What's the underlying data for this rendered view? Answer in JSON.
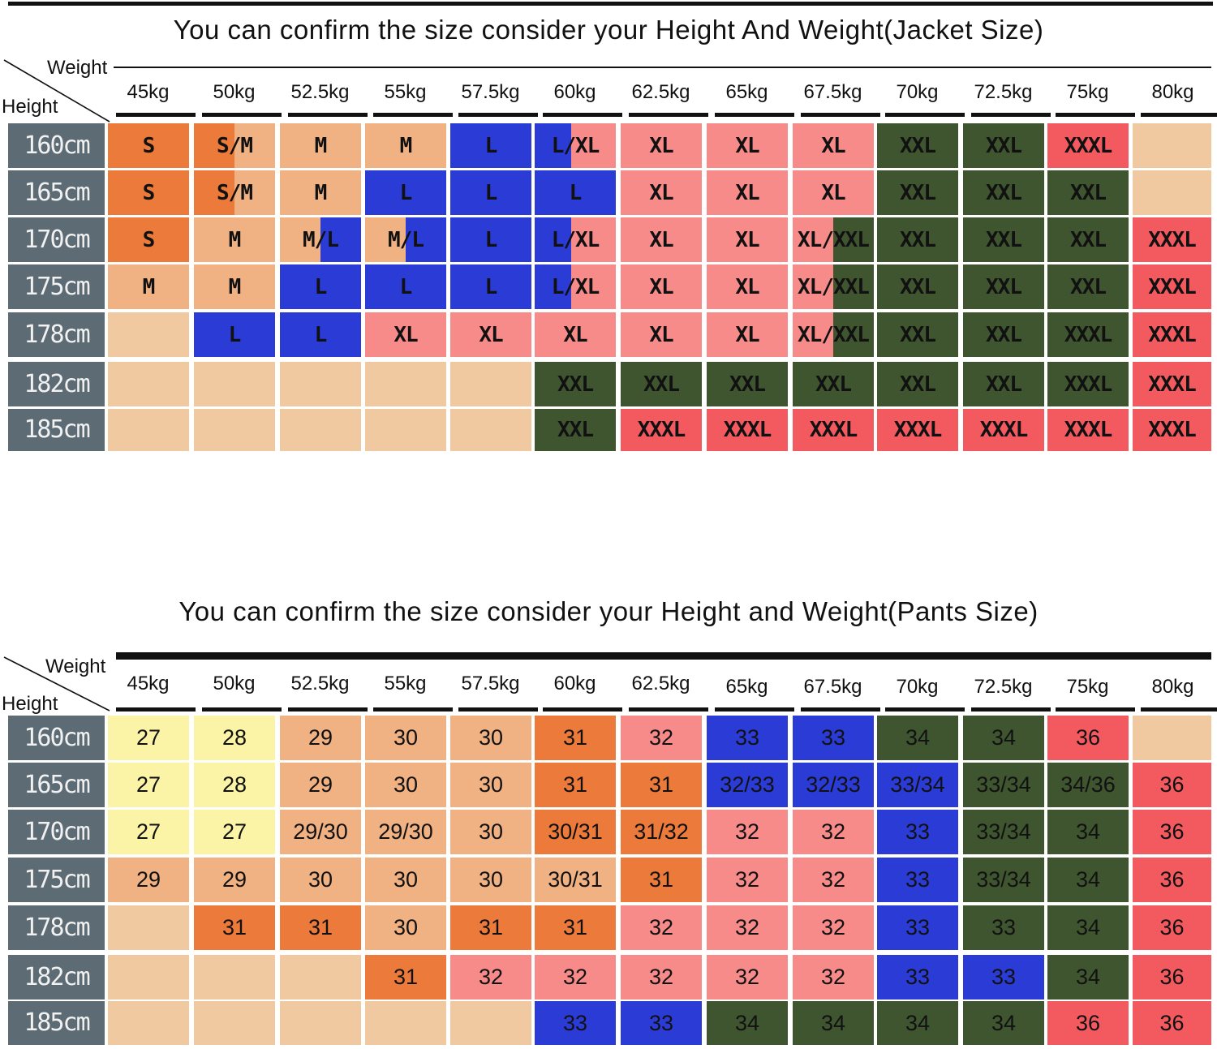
{
  "colors": {
    "S": "#ec7a3a",
    "M": "#f0b183",
    "L": "#2b3bd6",
    "XL": "#f78b8a",
    "XXL": "#3f552f",
    "XXXL": "#f25a5f",
    "empty": "#f0c9a0",
    "yellow": "#fbf4a6",
    "height_cell": "#5c6b74"
  },
  "jacket": {
    "title": "You can confirm the size consider  your Height And Weight(Jacket Size)",
    "weight_label": "Weight",
    "height_label": "Height",
    "weights": [
      "45kg",
      "50kg",
      "52.5kg",
      "55kg",
      "57.5kg",
      "60kg",
      "62.5kg",
      "65kg",
      "67.5kg",
      "70kg",
      "72.5kg",
      "75kg",
      "80kg"
    ],
    "heights": [
      "160cm",
      "165cm",
      "170cm",
      "175cm",
      "178cm",
      "182cm",
      "185cm"
    ],
    "rows": [
      [
        {
          "t": "S",
          "c": "S"
        },
        {
          "t": "S/M",
          "c": "M",
          "c2": "S",
          "split": 0.5
        },
        {
          "t": "M",
          "c": "M"
        },
        {
          "t": "M",
          "c": "M"
        },
        {
          "t": "L",
          "c": "L"
        },
        {
          "t": "L/XL",
          "c": "XL",
          "c2": "L",
          "split": 0.45
        },
        {
          "t": "XL",
          "c": "XL"
        },
        {
          "t": "XL",
          "c": "XL"
        },
        {
          "t": "XL",
          "c": "XL"
        },
        {
          "t": "XXL",
          "c": "XXL"
        },
        {
          "t": "XXL",
          "c": "XXL"
        },
        {
          "t": "XXXL",
          "c": "XXXL"
        },
        {
          "t": "",
          "c": "empty"
        }
      ],
      [
        {
          "t": "S",
          "c": "S"
        },
        {
          "t": "S/M",
          "c": "M",
          "c2": "S",
          "split": 0.5
        },
        {
          "t": "M",
          "c": "M"
        },
        {
          "t": "L",
          "c": "L"
        },
        {
          "t": "L",
          "c": "L"
        },
        {
          "t": "L",
          "c": "L"
        },
        {
          "t": "XL",
          "c": "XL"
        },
        {
          "t": "XL",
          "c": "XL"
        },
        {
          "t": "XL",
          "c": "XL"
        },
        {
          "t": "XXL",
          "c": "XXL"
        },
        {
          "t": "XXL",
          "c": "XXL"
        },
        {
          "t": "XXL",
          "c": "XXL"
        },
        {
          "t": "",
          "c": "empty"
        }
      ],
      [
        {
          "t": "S",
          "c": "S"
        },
        {
          "t": "M",
          "c": "M"
        },
        {
          "t": "M/L",
          "c": "M",
          "c2": "L",
          "split": 0.5,
          "rev": true
        },
        {
          "t": "M/L",
          "c": "M",
          "c2": "L",
          "split": 0.5,
          "rev": true
        },
        {
          "t": "L",
          "c": "L"
        },
        {
          "t": "L/XL",
          "c": "XL",
          "c2": "L",
          "split": 0.45
        },
        {
          "t": "XL",
          "c": "XL"
        },
        {
          "t": "XL",
          "c": "XL"
        },
        {
          "t": "XL/XXL",
          "c": "XL",
          "c2": "XXL",
          "split": 0.5,
          "rev": true
        },
        {
          "t": "XXL",
          "c": "XXL"
        },
        {
          "t": "XXL",
          "c": "XXL"
        },
        {
          "t": "XXL",
          "c": "XXL"
        },
        {
          "t": "XXXL",
          "c": "XXXL"
        }
      ],
      [
        {
          "t": "M",
          "c": "M"
        },
        {
          "t": "M",
          "c": "M"
        },
        {
          "t": "L",
          "c": "L"
        },
        {
          "t": "L",
          "c": "L"
        },
        {
          "t": "L",
          "c": "L"
        },
        {
          "t": "L/XL",
          "c": "XL",
          "c2": "L",
          "split": 0.45
        },
        {
          "t": "XL",
          "c": "XL"
        },
        {
          "t": "XL",
          "c": "XL"
        },
        {
          "t": "XL/XXL",
          "c": "XL",
          "c2": "XXL",
          "split": 0.5,
          "rev": true
        },
        {
          "t": "XXL",
          "c": "XXL"
        },
        {
          "t": "XXL",
          "c": "XXL"
        },
        {
          "t": "XXL",
          "c": "XXL"
        },
        {
          "t": "XXXL",
          "c": "XXXL"
        }
      ],
      [
        {
          "t": "",
          "c": "empty"
        },
        {
          "t": "L",
          "c": "L"
        },
        {
          "t": "L",
          "c": "L"
        },
        {
          "t": "XL",
          "c": "XL"
        },
        {
          "t": "XL",
          "c": "XL"
        },
        {
          "t": "XL",
          "c": "XL"
        },
        {
          "t": "XL",
          "c": "XL"
        },
        {
          "t": "XL",
          "c": "XL"
        },
        {
          "t": "XL/XXL",
          "c": "XL",
          "c2": "XXL",
          "split": 0.5,
          "rev": true
        },
        {
          "t": "XXL",
          "c": "XXL"
        },
        {
          "t": "XXL",
          "c": "XXL"
        },
        {
          "t": "XXXL",
          "c": "XXL"
        },
        {
          "t": "XXXL",
          "c": "XXXL"
        }
      ],
      [
        {
          "t": "",
          "c": "empty"
        },
        {
          "t": "",
          "c": "empty"
        },
        {
          "t": "",
          "c": "empty"
        },
        {
          "t": "",
          "c": "empty"
        },
        {
          "t": "",
          "c": "empty"
        },
        {
          "t": "XXL",
          "c": "XXL"
        },
        {
          "t": "XXL",
          "c": "XXL"
        },
        {
          "t": "XXL",
          "c": "XXL"
        },
        {
          "t": "XXL",
          "c": "XXL"
        },
        {
          "t": "XXL",
          "c": "XXL"
        },
        {
          "t": "XXL",
          "c": "XXL"
        },
        {
          "t": "XXXL",
          "c": "XXL"
        },
        {
          "t": "XXXL",
          "c": "XXXL"
        }
      ],
      [
        {
          "t": "",
          "c": "empty"
        },
        {
          "t": "",
          "c": "empty"
        },
        {
          "t": "",
          "c": "empty"
        },
        {
          "t": "",
          "c": "empty"
        },
        {
          "t": "",
          "c": "empty"
        },
        {
          "t": "XXL",
          "c": "XXL"
        },
        {
          "t": "XXXL",
          "c": "XXXL"
        },
        {
          "t": "XXXL",
          "c": "XXXL"
        },
        {
          "t": "XXXL",
          "c": "XXXL"
        },
        {
          "t": "XXXL",
          "c": "XXXL"
        },
        {
          "t": "XXXL",
          "c": "XXXL"
        },
        {
          "t": "XXXL",
          "c": "XXXL"
        },
        {
          "t": "XXXL",
          "c": "XXXL"
        }
      ]
    ]
  },
  "pants": {
    "title": "You can confirm the size consider your Height and Weight(Pants Size)",
    "weight_label": "Weight",
    "height_label": "Height",
    "weights": [
      "45kg",
      "50kg",
      "52.5kg",
      "55kg",
      "57.5kg",
      "60kg",
      "62.5kg",
      "65kg",
      "67.5kg",
      "70kg",
      "72.5kg",
      "75kg",
      "80kg"
    ],
    "heights": [
      "160cm",
      "165cm",
      "170cm",
      "175cm",
      "178cm",
      "182cm",
      "185cm"
    ],
    "rows": [
      [
        {
          "t": "27",
          "c": "yellow"
        },
        {
          "t": "28",
          "c": "yellow"
        },
        {
          "t": "29",
          "c": "M"
        },
        {
          "t": "30",
          "c": "M"
        },
        {
          "t": "30",
          "c": "M"
        },
        {
          "t": "31",
          "c": "S"
        },
        {
          "t": "32",
          "c": "XL"
        },
        {
          "t": "33",
          "c": "L"
        },
        {
          "t": "33",
          "c": "L"
        },
        {
          "t": "34",
          "c": "XXL"
        },
        {
          "t": "34",
          "c": "XXL"
        },
        {
          "t": "36",
          "c": "XXXL"
        },
        {
          "t": "",
          "c": "empty"
        }
      ],
      [
        {
          "t": "27",
          "c": "yellow"
        },
        {
          "t": "28",
          "c": "yellow"
        },
        {
          "t": "29",
          "c": "M"
        },
        {
          "t": "30",
          "c": "M"
        },
        {
          "t": "30",
          "c": "M"
        },
        {
          "t": "31",
          "c": "S"
        },
        {
          "t": "31",
          "c": "S"
        },
        {
          "t": "32/33",
          "c": "L"
        },
        {
          "t": "32/33",
          "c": "L"
        },
        {
          "t": "33/34",
          "c": "L"
        },
        {
          "t": "33/34",
          "c": "XXL"
        },
        {
          "t": "34/36",
          "c": "XXL"
        },
        {
          "t": "36",
          "c": "XXXL"
        }
      ],
      [
        {
          "t": "27",
          "c": "yellow"
        },
        {
          "t": "27",
          "c": "yellow"
        },
        {
          "t": "29/30",
          "c": "M"
        },
        {
          "t": "29/30",
          "c": "M"
        },
        {
          "t": "30",
          "c": "M"
        },
        {
          "t": "30/31",
          "c": "S"
        },
        {
          "t": "31/32",
          "c": "S"
        },
        {
          "t": "32",
          "c": "XL"
        },
        {
          "t": "32",
          "c": "XL"
        },
        {
          "t": "33",
          "c": "L"
        },
        {
          "t": "33/34",
          "c": "XXL"
        },
        {
          "t": "34",
          "c": "XXL"
        },
        {
          "t": "36",
          "c": "XXXL"
        }
      ],
      [
        {
          "t": "29",
          "c": "M"
        },
        {
          "t": "29",
          "c": "M"
        },
        {
          "t": "30",
          "c": "M"
        },
        {
          "t": "30",
          "c": "M"
        },
        {
          "t": "30",
          "c": "M"
        },
        {
          "t": "30/31",
          "c": "M"
        },
        {
          "t": "31",
          "c": "S"
        },
        {
          "t": "32",
          "c": "XL"
        },
        {
          "t": "32",
          "c": "XL"
        },
        {
          "t": "33",
          "c": "L"
        },
        {
          "t": "33/34",
          "c": "XXL"
        },
        {
          "t": "34",
          "c": "XXL"
        },
        {
          "t": "36",
          "c": "XXXL"
        }
      ],
      [
        {
          "t": "",
          "c": "empty"
        },
        {
          "t": "31",
          "c": "S"
        },
        {
          "t": "31",
          "c": "S"
        },
        {
          "t": "30",
          "c": "M"
        },
        {
          "t": "31",
          "c": "S"
        },
        {
          "t": "31",
          "c": "S"
        },
        {
          "t": "32",
          "c": "XL"
        },
        {
          "t": "32",
          "c": "XL"
        },
        {
          "t": "32",
          "c": "XL"
        },
        {
          "t": "33",
          "c": "L"
        },
        {
          "t": "33",
          "c": "XXL"
        },
        {
          "t": "34",
          "c": "XXL"
        },
        {
          "t": "36",
          "c": "XXXL"
        }
      ],
      [
        {
          "t": "",
          "c": "empty"
        },
        {
          "t": "",
          "c": "empty"
        },
        {
          "t": "",
          "c": "empty"
        },
        {
          "t": "31",
          "c": "S"
        },
        {
          "t": "32",
          "c": "XL"
        },
        {
          "t": "32",
          "c": "XL"
        },
        {
          "t": "32",
          "c": "XL"
        },
        {
          "t": "32",
          "c": "XL"
        },
        {
          "t": "32",
          "c": "XL"
        },
        {
          "t": "33",
          "c": "L"
        },
        {
          "t": "33",
          "c": "L"
        },
        {
          "t": "34",
          "c": "XXL"
        },
        {
          "t": "36",
          "c": "XXXL"
        }
      ],
      [
        {
          "t": "",
          "c": "empty"
        },
        {
          "t": "",
          "c": "empty"
        },
        {
          "t": "",
          "c": "empty"
        },
        {
          "t": "",
          "c": "empty"
        },
        {
          "t": "",
          "c": "empty"
        },
        {
          "t": "33",
          "c": "L"
        },
        {
          "t": "33",
          "c": "L"
        },
        {
          "t": "34",
          "c": "XXL"
        },
        {
          "t": "34",
          "c": "XXL"
        },
        {
          "t": "34",
          "c": "XXL"
        },
        {
          "t": "34",
          "c": "XXL"
        },
        {
          "t": "36",
          "c": "XXXL"
        },
        {
          "t": "36",
          "c": "XXXL"
        }
      ]
    ]
  }
}
